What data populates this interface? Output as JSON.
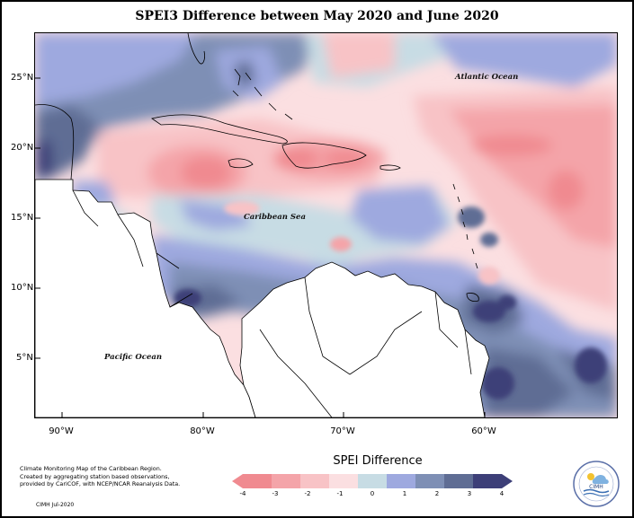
{
  "title": "SPEI3 Difference between May 2020 and June 2020",
  "latitude_labels": [
    "25°N",
    "20°N",
    "15°N",
    "10°N",
    "5°N"
  ],
  "longitude_labels": [
    "90°W",
    "80°W",
    "70°W",
    "60°W"
  ],
  "region_labels": {
    "atlantic": "Atlantic Ocean",
    "caribbean": "Caribbean Sea",
    "pacific": "Pacific Ocean"
  },
  "legend": {
    "title": "SPEI Difference",
    "ticks": [
      "-4",
      "-3",
      "-2",
      "-1",
      "0",
      "1",
      "2",
      "3",
      "4"
    ],
    "colors": [
      "#f08a90",
      "#f4a4a9",
      "#f8c3c6",
      "#fbdfe1",
      "#c7dce4",
      "#9ea9df",
      "#7e8fb5",
      "#5f6d94",
      "#3d3f78"
    ]
  },
  "footnote": {
    "line1": "Climate Monitoring Map of the Caribbean Region.",
    "line2": "Created by aggregating station based observations,",
    "line3": "provided by CariCOF, with NCEP/NCAR Reanalysis Data.",
    "credit": "CIMH Jul-2020"
  },
  "logo": {
    "text": "CIMH",
    "icon": "cimh-logo-icon"
  }
}
